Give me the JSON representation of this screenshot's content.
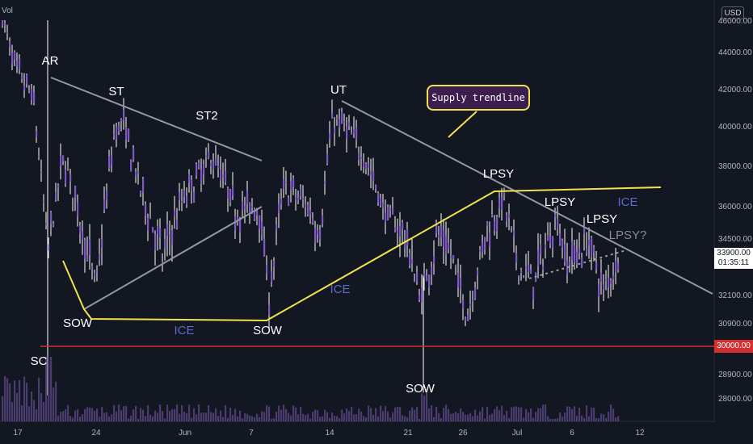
{
  "chart_data": {
    "type": "candlestick",
    "currency": "USD",
    "volume_label": "Vol",
    "y_ticks": [
      "46000.00",
      "44000.00",
      "42000.00",
      "40000.00",
      "38000.00",
      "36000.00",
      "34500.00",
      "33900.00",
      "32100.00",
      "30900.00",
      "30000.00",
      "28900.00",
      "28000.00"
    ],
    "y_tick_values": [
      46000,
      44000,
      42000,
      40000,
      38000,
      36000,
      34500,
      32100,
      30900,
      28900,
      28000
    ],
    "x_ticks": [
      "17",
      "24",
      "Jun",
      "7",
      "14",
      "21",
      "26",
      "Jul",
      "6",
      "12"
    ],
    "last_price": "33900.00",
    "countdown": "01:35:11",
    "support_level": "30000.00",
    "callout": "Supply trendline",
    "annotations": [
      "AR",
      "ST",
      "ST2",
      "SC",
      "SOW",
      "ICE",
      "SOW",
      "UT",
      "ICE",
      "SOW",
      "LPSY",
      "LPSY",
      "LPSY",
      "ICE",
      "LPSY?"
    ],
    "colors": {
      "background": "#131722",
      "candle": "#7e57c2",
      "wick": "#ffffff",
      "yellow_lines": "#f0e24a",
      "gray_lines": "#9598a1",
      "support": "#d32f2f",
      "ice_label": "#5b6ad0"
    }
  }
}
